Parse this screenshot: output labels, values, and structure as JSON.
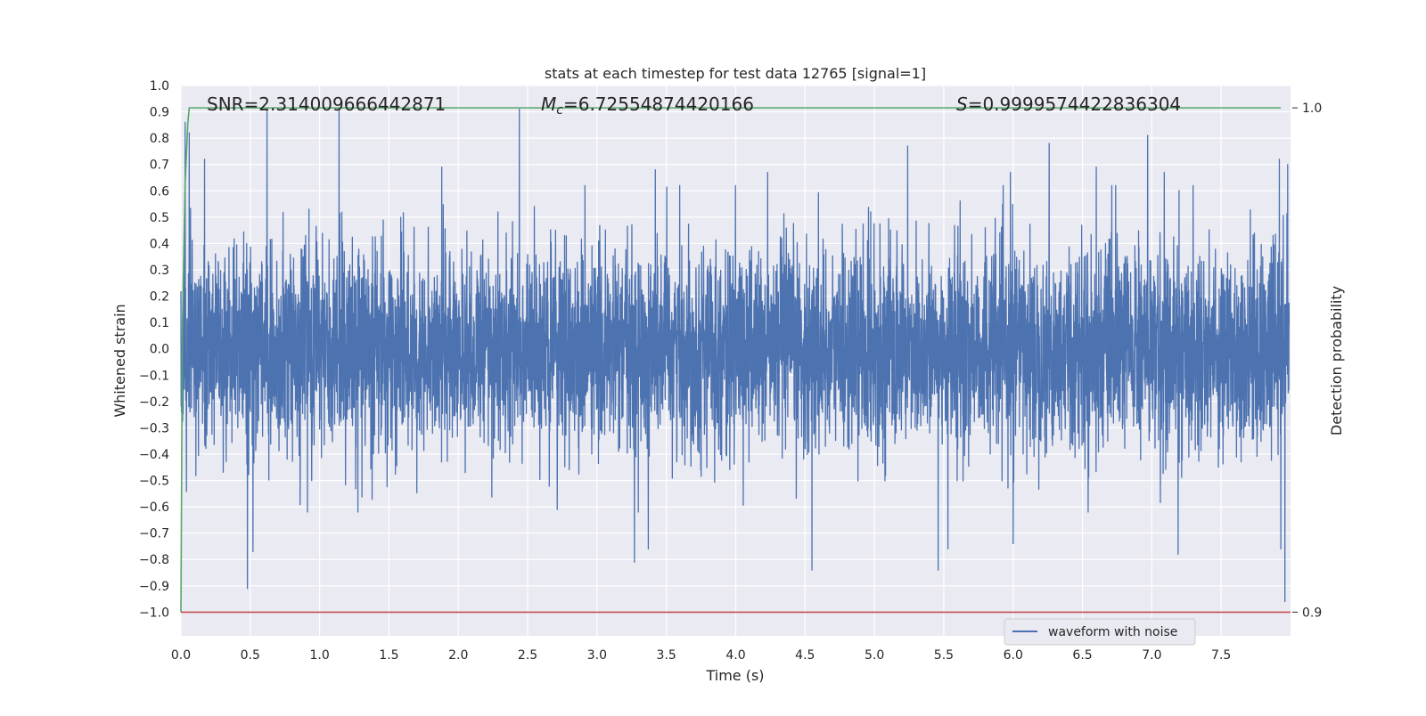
{
  "chart_data": {
    "type": "line",
    "title": "stats at each timestep for test data 12765 [signal=1]",
    "xlabel": "Time (s)",
    "ylabel": "Whitened strain",
    "ylabel_right": "Detection probability",
    "xlim": [
      0.0,
      8.0
    ],
    "ylim": [
      -1.09,
      1.0
    ],
    "ylim_right": [
      0.9,
      1.0
    ],
    "x_ticks": [
      "0.0",
      "0.5",
      "1.0",
      "1.5",
      "2.0",
      "2.5",
      "3.0",
      "3.5",
      "4.0",
      "4.5",
      "5.0",
      "5.5",
      "6.0",
      "6.5",
      "7.0",
      "7.5"
    ],
    "y_ticks": [
      "1.0",
      "0.9",
      "0.8",
      "0.7",
      "0.6",
      "0.5",
      "0.4",
      "0.3",
      "0.2",
      "0.1",
      "0.0",
      "−0.1",
      "−0.2",
      "−0.3",
      "−0.4",
      "−0.5",
      "−0.6",
      "−0.7",
      "−0.8",
      "−0.9",
      "−1.0"
    ],
    "y_ticks_right": [
      "1.0",
      "0.9"
    ],
    "grid": true,
    "legend_position": "lower-right",
    "annotations": {
      "snr": "SNR=2.314009666442871",
      "mc_symbol": "M",
      "mc_subscript": "c",
      "mc_value": "=6.72554874420166",
      "s_symbol": "S",
      "s_value": "=0.9999574422836304"
    },
    "series": [
      {
        "name": "waveform with noise",
        "color": "#4c72b0",
        "style": "noise",
        "x_range": [
          0.0,
          7.99
        ],
        "typical_amplitude": 0.45,
        "min": -0.96,
        "max": 0.91,
        "peaks": [
          {
            "x": 0.03,
            "y": 0.86
          },
          {
            "x": 0.06,
            "y": 0.82
          },
          {
            "x": 0.17,
            "y": 0.72
          },
          {
            "x": 0.48,
            "y": -0.91
          },
          {
            "x": 0.52,
            "y": -0.77
          },
          {
            "x": 0.62,
            "y": 0.91
          },
          {
            "x": 1.14,
            "y": 0.91
          },
          {
            "x": 1.88,
            "y": 0.69
          },
          {
            "x": 2.44,
            "y": 0.91
          },
          {
            "x": 3.27,
            "y": -0.81
          },
          {
            "x": 3.37,
            "y": -0.76
          },
          {
            "x": 3.42,
            "y": 0.68
          },
          {
            "x": 4.23,
            "y": 0.67
          },
          {
            "x": 4.55,
            "y": -0.84
          },
          {
            "x": 5.24,
            "y": 0.77
          },
          {
            "x": 5.46,
            "y": -0.84
          },
          {
            "x": 5.53,
            "y": -0.76
          },
          {
            "x": 5.98,
            "y": 0.67
          },
          {
            "x": 6.0,
            "y": -0.74
          },
          {
            "x": 6.26,
            "y": 0.78
          },
          {
            "x": 6.6,
            "y": 0.69
          },
          {
            "x": 6.74,
            "y": 0.62
          },
          {
            "x": 6.97,
            "y": 0.81
          },
          {
            "x": 7.09,
            "y": 0.67
          },
          {
            "x": 7.19,
            "y": -0.78
          },
          {
            "x": 7.92,
            "y": 0.72
          },
          {
            "x": 7.93,
            "y": -0.76
          },
          {
            "x": 7.96,
            "y": -0.96
          },
          {
            "x": 7.98,
            "y": 0.7
          }
        ]
      },
      {
        "name": "",
        "color": "#55a868",
        "axis": "right",
        "points": [
          [
            0.0,
            0.9
          ],
          [
            0.01,
            0.955
          ],
          [
            0.03,
            0.985
          ],
          [
            0.05,
            0.997
          ],
          [
            0.06,
            1.0
          ],
          [
            7.93,
            1.0
          ]
        ]
      },
      {
        "name": "",
        "color": "#c44e52",
        "axis": "right",
        "points": [
          [
            0.0,
            0.9
          ],
          [
            8.0,
            0.9
          ]
        ]
      }
    ]
  }
}
